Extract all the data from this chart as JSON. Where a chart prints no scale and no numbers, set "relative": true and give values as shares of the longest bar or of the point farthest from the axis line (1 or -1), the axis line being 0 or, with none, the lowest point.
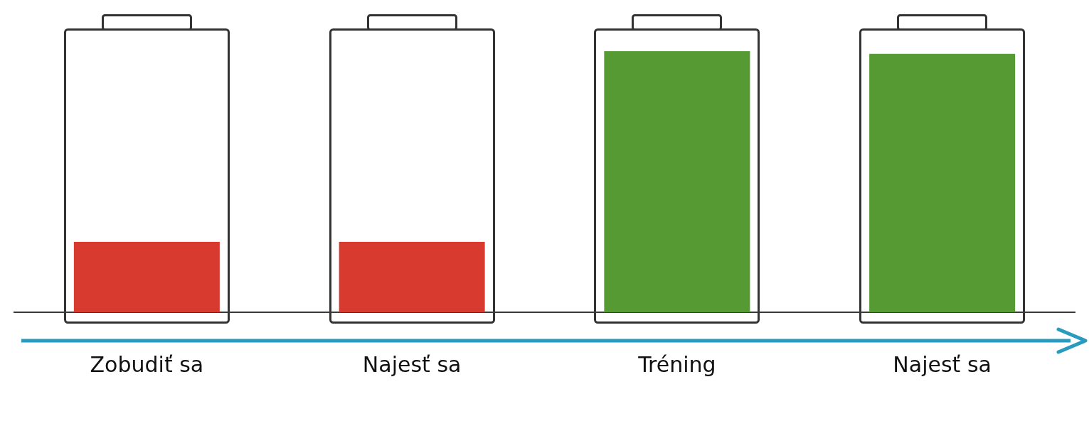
{
  "chart_data": {
    "type": "bar",
    "relative": true,
    "categories": [
      "Zobudiť sa",
      "Najesť sa",
      "Tréning",
      "Najesť sa"
    ],
    "values": [
      0.27,
      0.27,
      1,
      0.99
    ],
    "colors": [
      "#d83a30",
      "#d83a30",
      "#559a33",
      "#559a33"
    ],
    "grid": false,
    "legend": false
  }
}
